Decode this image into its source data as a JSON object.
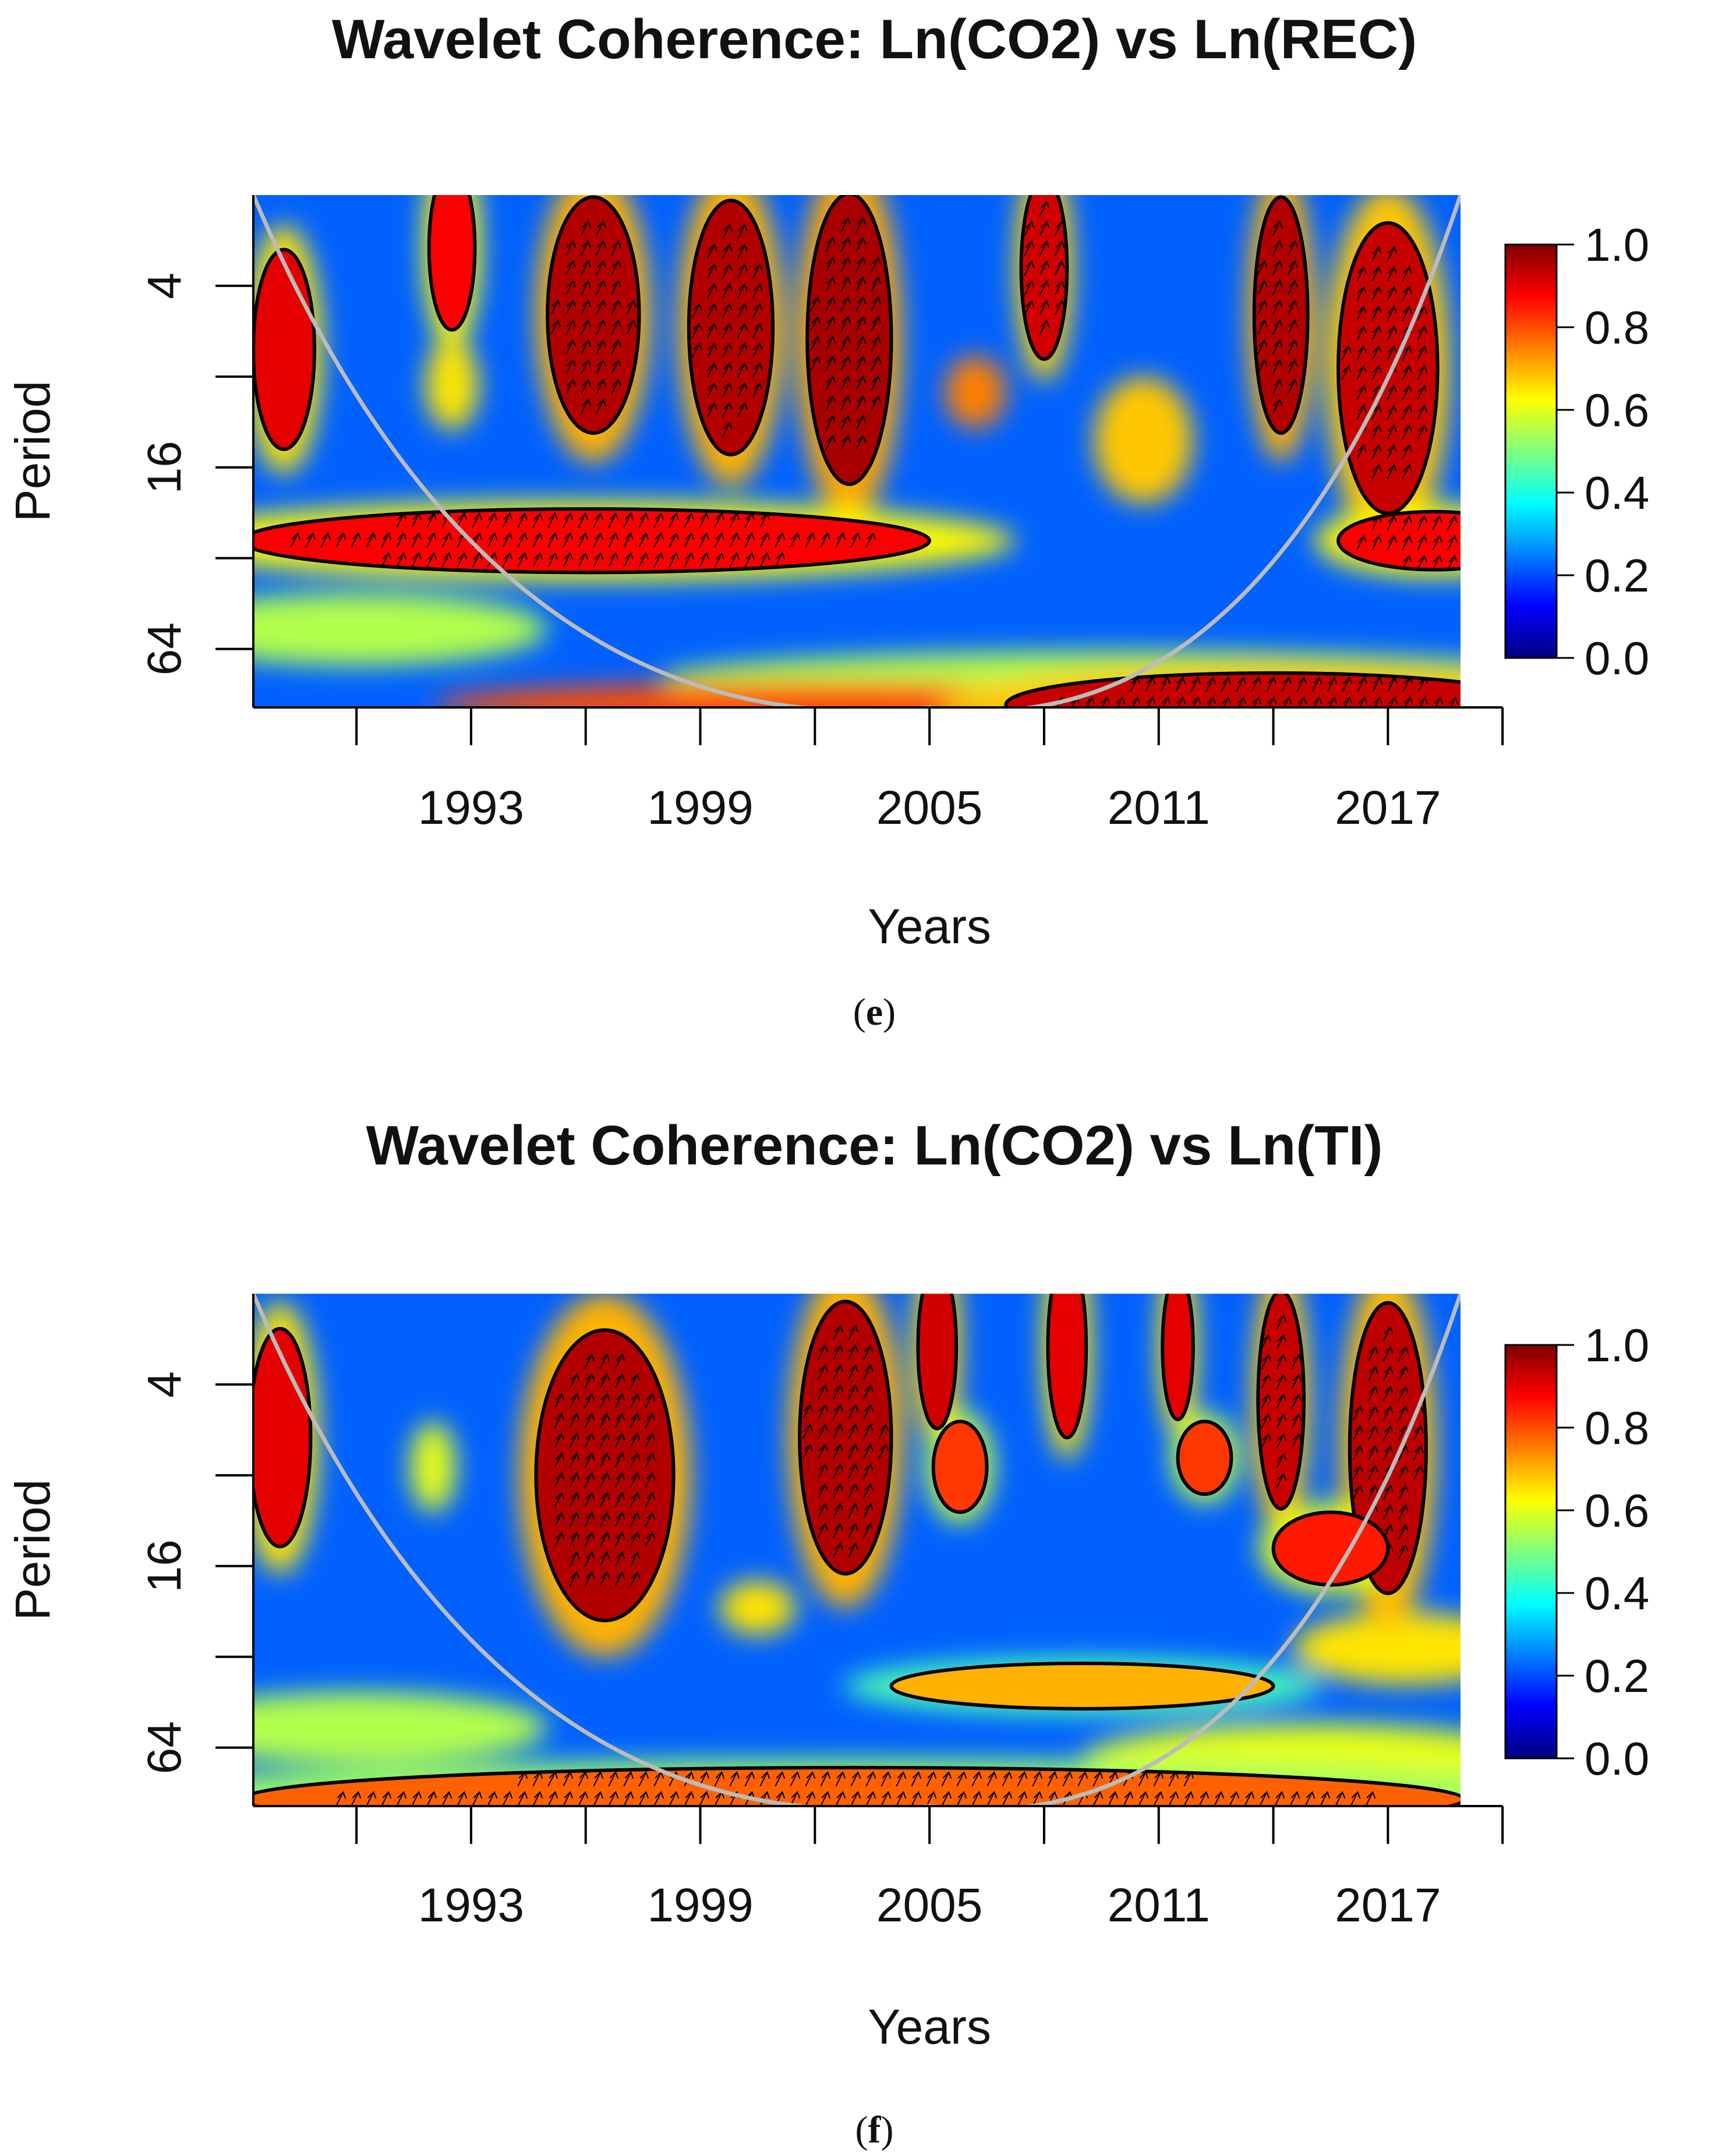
{
  "colors": {
    "colormap": [
      "#00007F",
      "#0000FF",
      "#007FFF",
      "#00FFFF",
      "#7FFF7F",
      "#FFFF00",
      "#FF7F00",
      "#FF0000",
      "#7F0000"
    ],
    "coi_line": "#BBBBBB",
    "contour": "#000000"
  },
  "chart_data": [
    {
      "type": "heatmap",
      "title": "Wavelet Coherence: Ln(CO2) vs Ln(REC)",
      "xlabel": "Years",
      "ylabel": "Period",
      "panel_open": "(",
      "panel_letter": "e",
      "panel_close": ")",
      "x_ticks": [
        1990,
        1993,
        1996,
        1999,
        2002,
        2005,
        2008,
        2011,
        2014,
        2017,
        2020
      ],
      "x_tick_labels": [
        "1993",
        "1999",
        "2005",
        "2011",
        "2017"
      ],
      "x_tick_label_values": [
        1993,
        1999,
        2005,
        2011,
        2017
      ],
      "xlim": [
        1987.3,
        2018.9
      ],
      "y_ticks_log2": [
        2,
        3,
        4,
        5,
        6
      ],
      "y_tick_labels": [
        "4",
        "16",
        "64"
      ],
      "y_tick_label_values": [
        4,
        16,
        64
      ],
      "ylim_period": [
        2,
        100
      ],
      "colorbar": {
        "min": 0,
        "max": 1,
        "ticks": [
          "0.0",
          "0.2",
          "0.4",
          "0.6",
          "0.8",
          "1.0"
        ]
      },
      "base_coherence": 0.22,
      "cone_of_influence": {
        "apex_year": 2005,
        "apex_period": 100,
        "edge_period": 2
      },
      "significant_regions": [
        {
          "x": 1996.2,
          "p": 5.0,
          "w": 1.2,
          "h": 1.3,
          "v": 0.95,
          "arrows": true
        },
        {
          "x": 1999.8,
          "p": 5.5,
          "w": 1.1,
          "h": 1.4,
          "v": 0.95,
          "arrows": true
        },
        {
          "x": 2002.9,
          "p": 6.0,
          "w": 1.1,
          "h": 1.6,
          "v": 0.96,
          "arrows": true
        },
        {
          "x": 2008.0,
          "p": 3.5,
          "w": 0.6,
          "h": 1.0,
          "v": 0.92,
          "arrows": true
        },
        {
          "x": 2014.2,
          "p": 5.0,
          "w": 0.7,
          "h": 1.3,
          "v": 0.95,
          "arrows": true
        },
        {
          "x": 2017.0,
          "p": 7.5,
          "w": 1.3,
          "h": 1.6,
          "v": 0.93,
          "arrows": true
        },
        {
          "x": 1988.1,
          "p": 6.5,
          "w": 0.8,
          "h": 1.1,
          "v": 0.9,
          "arrows": false
        },
        {
          "x": 1992.5,
          "p": 3.0,
          "w": 0.6,
          "h": 0.9,
          "v": 0.88,
          "arrows": false
        },
        {
          "x": 1996.0,
          "p": 28.0,
          "w": 9.0,
          "h": 0.35,
          "v": 0.88,
          "arrows": true
        },
        {
          "x": 2018.2,
          "p": 28.0,
          "w": 2.5,
          "h": 0.32,
          "v": 0.88,
          "arrows": true
        },
        {
          "x": 2014.0,
          "p": 98.0,
          "w": 7.0,
          "h": 0.35,
          "v": 0.93,
          "arrows": true
        }
      ],
      "other_features": [
        {
          "x": 1992.5,
          "p": 8.5,
          "w": 0.7,
          "h": 0.5,
          "v": 0.65
        },
        {
          "x": 2006.2,
          "p": 9.0,
          "w": 0.8,
          "h": 0.4,
          "v": 0.75
        },
        {
          "x": 2010.6,
          "p": 13.0,
          "w": 1.3,
          "h": 0.7,
          "v": 0.68
        },
        {
          "x": 1990.0,
          "p": 55.0,
          "w": 5.0,
          "h": 0.4,
          "v": 0.55
        },
        {
          "x": 2010.0,
          "p": 80.0,
          "w": 12.0,
          "h": 0.3,
          "v": 0.55
        },
        {
          "x": 2002.0,
          "p": 98.0,
          "w": 10.0,
          "h": 0.25,
          "v": 0.8
        }
      ]
    },
    {
      "type": "heatmap",
      "title": "Wavelet Coherence: Ln(CO2) vs Ln(TI)",
      "xlabel": "Years",
      "ylabel": "Period",
      "panel_open": "(",
      "panel_letter": "f",
      "panel_close": ")",
      "x_ticks": [
        1990,
        1993,
        1996,
        1999,
        2002,
        2005,
        2008,
        2011,
        2014,
        2017,
        2020
      ],
      "x_tick_labels": [
        "1993",
        "1999",
        "2005",
        "2011",
        "2017"
      ],
      "x_tick_label_values": [
        1993,
        1999,
        2005,
        2011,
        2017
      ],
      "xlim": [
        1987.3,
        2018.9
      ],
      "y_ticks_log2": [
        2,
        3,
        4,
        5,
        6
      ],
      "y_tick_labels": [
        "4",
        "16",
        "64"
      ],
      "y_tick_label_values": [
        4,
        16,
        64
      ],
      "ylim_period": [
        2,
        100
      ],
      "colorbar": {
        "min": 0,
        "max": 1,
        "ticks": [
          "0.0",
          "0.2",
          "0.4",
          "0.6",
          "0.8",
          "1.0"
        ]
      },
      "base_coherence": 0.22,
      "cone_of_influence": {
        "apex_year": 2005,
        "apex_period": 100,
        "edge_period": 2
      },
      "significant_regions": [
        {
          "x": 1996.5,
          "p": 8.0,
          "w": 1.8,
          "h": 1.6,
          "v": 0.95,
          "arrows": true
        },
        {
          "x": 2002.8,
          "p": 6.0,
          "w": 1.2,
          "h": 1.5,
          "v": 0.95,
          "arrows": true
        },
        {
          "x": 2014.2,
          "p": 4.5,
          "w": 0.6,
          "h": 1.2,
          "v": 0.93,
          "arrows": true
        },
        {
          "x": 2017.0,
          "p": 6.5,
          "w": 1.0,
          "h": 1.6,
          "v": 0.94,
          "arrows": true
        },
        {
          "x": 2005.2,
          "p": 3.0,
          "w": 0.5,
          "h": 0.9,
          "v": 0.92,
          "arrows": false
        },
        {
          "x": 2008.6,
          "p": 3.0,
          "w": 0.5,
          "h": 1.0,
          "v": 0.9,
          "arrows": false
        },
        {
          "x": 2011.5,
          "p": 3.0,
          "w": 0.4,
          "h": 0.8,
          "v": 0.9,
          "arrows": false
        },
        {
          "x": 1988.0,
          "p": 6.0,
          "w": 0.8,
          "h": 1.2,
          "v": 0.9,
          "arrows": false
        },
        {
          "x": 2005.8,
          "p": 7.5,
          "w": 0.7,
          "h": 0.5,
          "v": 0.82,
          "arrows": false
        },
        {
          "x": 2012.2,
          "p": 7.0,
          "w": 0.7,
          "h": 0.4,
          "v": 0.82,
          "arrows": false
        },
        {
          "x": 2015.5,
          "p": 14.0,
          "w": 1.5,
          "h": 0.4,
          "v": 0.85,
          "arrows": false
        },
        {
          "x": 2009.0,
          "p": 40.0,
          "w": 5.0,
          "h": 0.25,
          "v": 0.7,
          "arrows": false
        },
        {
          "x": 2003.0,
          "p": 95.0,
          "w": 16.0,
          "h": 0.35,
          "v": 0.78,
          "arrows": true
        }
      ],
      "other_features": [
        {
          "x": 1992.0,
          "p": 7.5,
          "w": 0.6,
          "h": 0.5,
          "v": 0.6
        },
        {
          "x": 2000.5,
          "p": 22.0,
          "w": 1.0,
          "h": 0.3,
          "v": 0.65
        },
        {
          "x": 2017.5,
          "p": 30.0,
          "w": 3.0,
          "h": 0.4,
          "v": 0.65
        },
        {
          "x": 1990.0,
          "p": 55.0,
          "w": 5.0,
          "h": 0.4,
          "v": 0.55
        },
        {
          "x": 2015.0,
          "p": 70.0,
          "w": 6.0,
          "h": 0.4,
          "v": 0.6
        },
        {
          "x": 2003.0,
          "p": 100.0,
          "w": 16.0,
          "h": 0.3,
          "v": 0.8
        }
      ]
    }
  ]
}
